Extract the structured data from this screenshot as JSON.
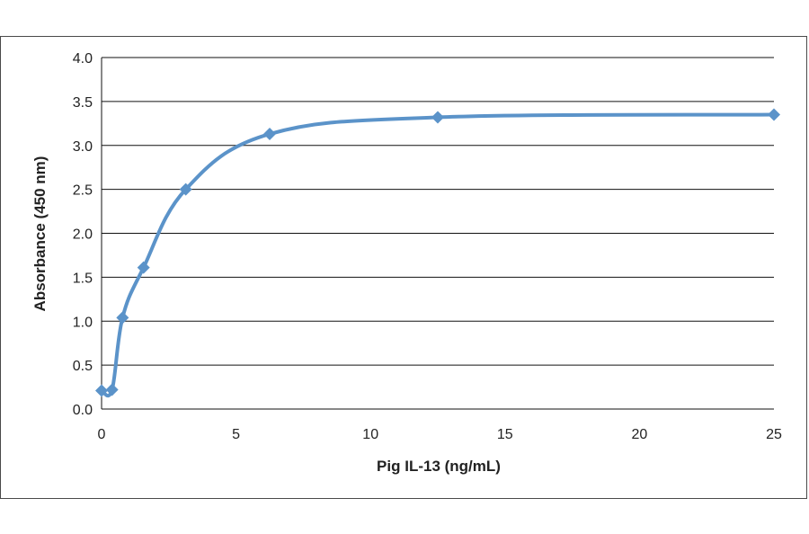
{
  "chart_data": {
    "type": "scatter",
    "title": "",
    "xlabel": "Pig IL-13 (ng/mL)",
    "ylabel": "Absorbance  (450 nm)",
    "xlim": [
      0,
      25
    ],
    "ylim": [
      0,
      4.0
    ],
    "x_ticks": [
      "0",
      "5",
      "10",
      "15",
      "20",
      "25"
    ],
    "y_ticks": [
      "0.0",
      "0.5",
      "1.0",
      "1.5",
      "2.0",
      "2.5",
      "3.0",
      "3.5",
      "4.0"
    ],
    "grid": "horizontal",
    "legend": "none",
    "smooth_line": true,
    "marker": "diamond",
    "series": [
      {
        "color": "#5b93c9",
        "x": [
          0,
          0.39,
          0.78,
          1.56,
          3.13,
          6.25,
          12.5,
          25
        ],
        "y": [
          0.21,
          0.22,
          1.04,
          1.61,
          2.5,
          3.13,
          3.32,
          3.35
        ]
      }
    ]
  }
}
